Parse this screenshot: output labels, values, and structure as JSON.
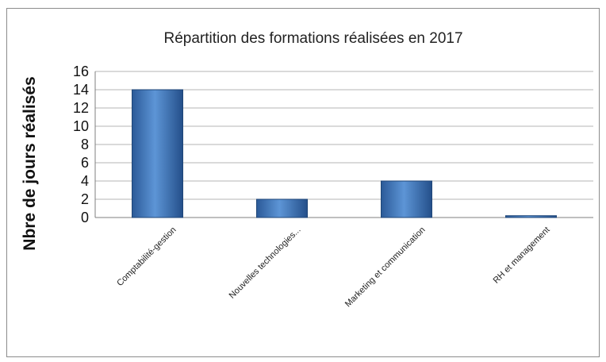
{
  "chart_data": {
    "type": "bar",
    "title": "Répartition des formations réalisées en 2017",
    "ylabel": "Nbre de jours réalisés",
    "categories": [
      "Comptabilité-gestion",
      "Nouvelles technologies...",
      "Marketing et communication",
      "RH et management"
    ],
    "values": [
      14,
      2,
      4,
      0.2
    ],
    "ylim": [
      0,
      16
    ],
    "yticks": [
      0,
      2,
      4,
      6,
      8,
      10,
      12,
      14,
      16
    ],
    "grid": true,
    "legend": "none",
    "bar_color": "#3f74b8"
  }
}
